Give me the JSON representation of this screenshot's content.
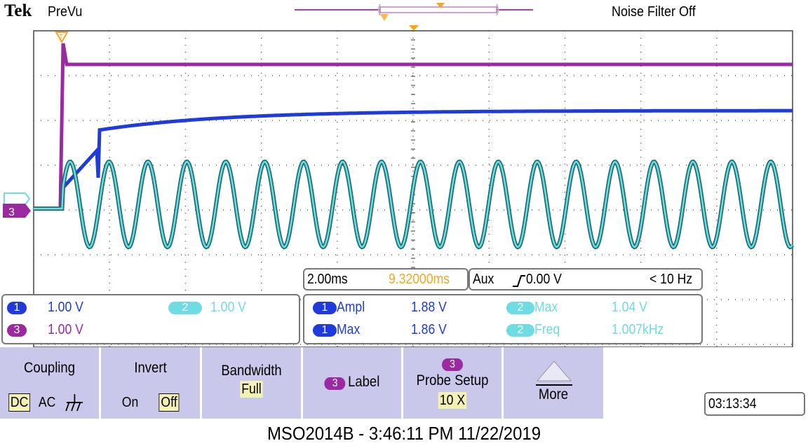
{
  "header": {
    "brand": "Tek",
    "mode": "PreVu",
    "noise_filter": "Noise Filter Off"
  },
  "colors": {
    "ch1": "#1f3bd9",
    "ch2": "#6fdbe3",
    "ch3": "#9b2aa0",
    "ch4": "#1b8a8a",
    "trigger": "#f5a623",
    "menu": "#c9c7ea",
    "selected": "#f4f1b6"
  },
  "markers": {
    "trigger_position": "T",
    "ch2_marker": "2",
    "ch3_marker": "3"
  },
  "timebase": {
    "scale": "2.00ms",
    "delay": "9.32000ms",
    "trigger_source": "Aux",
    "trigger_slope_icon": "rising-edge-icon",
    "trigger_level": "0.00 V",
    "trigger_freq": "< 10 Hz"
  },
  "channels": {
    "ch1": {
      "badge": "1",
      "scale": "1.00 V"
    },
    "ch2": {
      "badge": "2",
      "scale": "1.00 V"
    },
    "ch3": {
      "badge": "3",
      "scale": "1.00 V"
    }
  },
  "measurements": [
    {
      "badge": "1",
      "label": "Ampl",
      "value": "1.88 V",
      "color": "#1f3bd9"
    },
    {
      "badge": "2",
      "label": "Max",
      "value": "1.04 V",
      "color": "#6fdbe3"
    },
    {
      "badge": "1",
      "label": "Max",
      "value": "1.86 V",
      "color": "#1f3bd9"
    },
    {
      "badge": "2",
      "label": "Freq",
      "value": "1.007kHz",
      "color": "#6fdbe3"
    }
  ],
  "menu": {
    "coupling": {
      "title": "Coupling",
      "options": [
        "DC",
        "AC"
      ],
      "selected": "DC",
      "ground_icon": "ground-icon"
    },
    "invert": {
      "title": "Invert",
      "options": [
        "On",
        "Off"
      ],
      "selected": "Off"
    },
    "bandwidth": {
      "title": "Bandwidth",
      "value": "Full"
    },
    "label": {
      "badge": "3",
      "title": "Label"
    },
    "probe_setup": {
      "badge": "3",
      "title": "Probe Setup",
      "value": "10 X"
    },
    "more": {
      "title": "More",
      "icon": "triangle-up-icon"
    }
  },
  "clock": "03:13:34",
  "footer": "MSO2014B - 3:46:11 PM   11/22/2019"
}
